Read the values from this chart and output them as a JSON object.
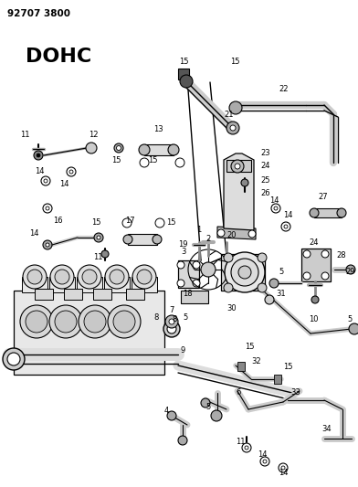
{
  "title_top": "92707 3800",
  "label_dohc": "DOHC",
  "bg_color": "#ffffff",
  "fig_width": 3.92,
  "fig_height": 5.33,
  "dpi": 100
}
